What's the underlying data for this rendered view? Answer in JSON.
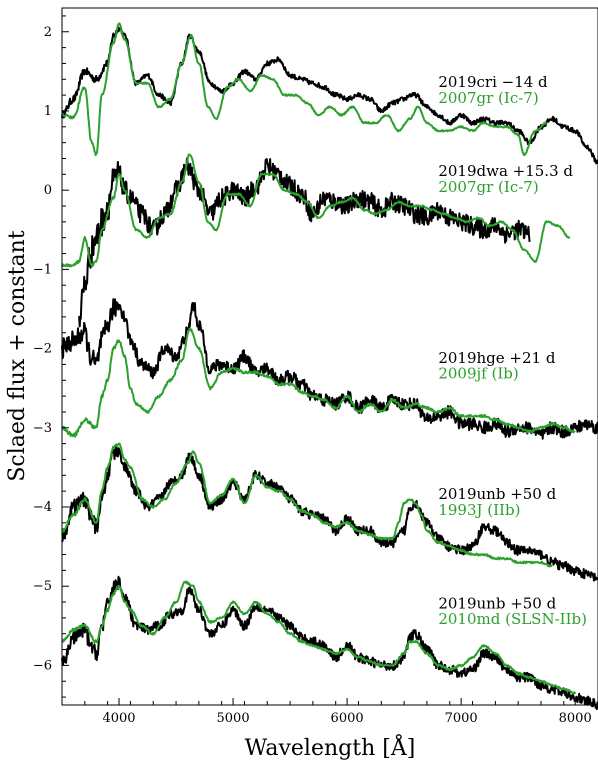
{
  "chart_data": {
    "type": "line",
    "title": "",
    "xlabel": "Wavelength [Å]",
    "ylabel": "Sclaed flux + constant",
    "xlim": [
      3500,
      8200
    ],
    "ylim": [
      -6.5,
      2.3
    ],
    "xticks": [
      4000,
      5000,
      6000,
      7000,
      8000
    ],
    "yticks": [
      -6,
      -5,
      -4,
      -3,
      -2,
      -1,
      0,
      1,
      2
    ],
    "grid": false,
    "legend": "none",
    "colors": {
      "observed": "#000000",
      "template": "#2ca02c"
    },
    "series": [
      {
        "name": "2019cri −14 d",
        "role": "observed",
        "noise": 0.03,
        "x": [
          3500,
          3600,
          3700,
          3800,
          3900,
          3950,
          4000,
          4050,
          4150,
          4250,
          4350,
          4450,
          4550,
          4620,
          4700,
          4800,
          4900,
          5000,
          5100,
          5200,
          5300,
          5400,
          5500,
          5600,
          5700,
          5800,
          5900,
          6000,
          6100,
          6200,
          6300,
          6400,
          6500,
          6550,
          6600,
          6700,
          6800,
          6900,
          7000,
          7100,
          7200,
          7300,
          7400,
          7500,
          7600,
          7700,
          7800,
          7900,
          8000,
          8100,
          8200
        ],
        "y": [
          0.95,
          1.15,
          1.5,
          1.4,
          1.6,
          1.95,
          2.05,
          1.95,
          1.35,
          1.45,
          1.2,
          1.1,
          1.6,
          1.95,
          1.75,
          1.35,
          1.25,
          1.35,
          1.5,
          1.4,
          1.6,
          1.65,
          1.45,
          1.4,
          1.35,
          1.3,
          1.2,
          1.15,
          1.2,
          1.15,
          1.0,
          1.1,
          1.15,
          1.2,
          1.2,
          1.05,
          0.95,
          0.85,
          0.95,
          0.85,
          0.9,
          0.85,
          0.85,
          0.75,
          0.6,
          0.8,
          0.9,
          0.8,
          0.75,
          0.55,
          0.35
        ]
      },
      {
        "name": "2007gr (Ic-7)",
        "role": "template",
        "noise": 0.01,
        "x": [
          3500,
          3600,
          3700,
          3760,
          3800,
          3850,
          3950,
          4000,
          4050,
          4150,
          4250,
          4350,
          4450,
          4550,
          4630,
          4700,
          4780,
          4850,
          4950,
          5050,
          5150,
          5250,
          5350,
          5450,
          5550,
          5650,
          5750,
          5850,
          5950,
          6050,
          6150,
          6250,
          6350,
          6450,
          6550,
          6620,
          6700,
          6800,
          6900,
          7000,
          7100,
          7200,
          7300,
          7400,
          7500,
          7550,
          7650,
          7750
        ],
        "y": [
          0.95,
          0.92,
          1.3,
          0.6,
          0.45,
          1.2,
          1.85,
          2.1,
          1.9,
          1.35,
          1.35,
          1.05,
          1.15,
          1.6,
          1.95,
          1.6,
          1.05,
          0.9,
          1.3,
          1.4,
          1.25,
          1.45,
          1.4,
          1.2,
          1.2,
          1.1,
          0.95,
          1.05,
          0.95,
          1.05,
          0.85,
          0.85,
          0.95,
          0.75,
          0.9,
          1.05,
          0.85,
          0.75,
          0.75,
          0.8,
          0.75,
          0.85,
          0.8,
          0.8,
          0.7,
          0.45,
          0.75,
          0.85
        ]
      },
      {
        "name": "2019dwa +15.3 d",
        "role": "observed",
        "noise": 0.12,
        "x": [
          3650,
          3700,
          3750,
          3800,
          3850,
          3900,
          3950,
          4000,
          4050,
          4100,
          4200,
          4300,
          4400,
          4500,
          4600,
          4700,
          4800,
          4900,
          5000,
          5100,
          5200,
          5300,
          5400,
          5500,
          5600,
          5700,
          5800,
          5900,
          6000,
          6100,
          6200,
          6300,
          6400,
          6500,
          6600,
          6700,
          6800,
          6900,
          7000,
          7100,
          7200,
          7300,
          7400,
          7500,
          7600
        ],
        "y": [
          -1.6,
          -1.2,
          -0.8,
          -0.6,
          -0.4,
          -0.2,
          0.1,
          0.2,
          0.0,
          -0.1,
          -0.3,
          -0.5,
          -0.3,
          0.0,
          0.3,
          0.0,
          -0.3,
          -0.1,
          0.0,
          -0.1,
          0.05,
          0.3,
          0.2,
          0.05,
          -0.05,
          -0.3,
          -0.1,
          -0.15,
          -0.2,
          -0.1,
          -0.15,
          -0.25,
          -0.15,
          -0.2,
          -0.3,
          -0.35,
          -0.25,
          -0.35,
          -0.4,
          -0.45,
          -0.5,
          -0.45,
          -0.55,
          -0.5,
          -0.55
        ]
      },
      {
        "name": "2007gr (Ic-7)",
        "role": "template",
        "noise": 0.01,
        "x": [
          3500,
          3600,
          3650,
          3700,
          3760,
          3800,
          3850,
          3950,
          4000,
          4050,
          4150,
          4250,
          4350,
          4450,
          4550,
          4620,
          4700,
          4780,
          4850,
          4950,
          5050,
          5150,
          5250,
          5350,
          5450,
          5550,
          5650,
          5750,
          5850,
          5950,
          6050,
          6150,
          6250,
          6350,
          6450,
          6550,
          6650,
          6750,
          6850,
          6950,
          7050,
          7150,
          7250,
          7350,
          7450,
          7550,
          7650,
          7750,
          7850,
          7950
        ],
        "y": [
          -0.95,
          -0.95,
          -0.9,
          -0.6,
          -0.95,
          -0.9,
          -0.5,
          -0.1,
          0.2,
          0.0,
          -0.5,
          -0.6,
          -0.35,
          -0.3,
          0.1,
          0.45,
          0.1,
          -0.4,
          -0.5,
          -0.05,
          -0.05,
          -0.2,
          0.2,
          0.2,
          0.0,
          -0.05,
          -0.15,
          -0.35,
          -0.2,
          -0.15,
          -0.1,
          -0.25,
          -0.3,
          -0.25,
          -0.15,
          -0.2,
          -0.2,
          -0.25,
          -0.3,
          -0.35,
          -0.4,
          -0.35,
          -0.45,
          -0.4,
          -0.5,
          -0.75,
          -0.9,
          -0.4,
          -0.45,
          -0.6
        ]
      },
      {
        "name": "2019hge +21 d",
        "role": "observed",
        "noise": 0.08,
        "x": [
          3500,
          3600,
          3700,
          3750,
          3800,
          3850,
          3900,
          3950,
          4000,
          4050,
          4100,
          4200,
          4300,
          4400,
          4500,
          4600,
          4650,
          4700,
          4800,
          4900,
          5000,
          5100,
          5200,
          5300,
          5400,
          5500,
          5600,
          5700,
          5800,
          5900,
          6000,
          6100,
          6200,
          6300,
          6400,
          6500,
          6600,
          6700,
          6800,
          6900,
          7000,
          7100,
          7200,
          7300,
          7400,
          7500,
          7600,
          7700,
          7800,
          7900,
          8000,
          8100,
          8200
        ],
        "y": [
          -2.0,
          -1.9,
          -1.8,
          -2.1,
          -2.2,
          -1.9,
          -1.7,
          -1.5,
          -1.45,
          -1.6,
          -1.9,
          -2.2,
          -2.3,
          -2.0,
          -2.1,
          -1.8,
          -1.45,
          -1.7,
          -2.25,
          -2.2,
          -2.25,
          -2.1,
          -2.3,
          -2.25,
          -2.4,
          -2.35,
          -2.45,
          -2.6,
          -2.65,
          -2.7,
          -2.6,
          -2.75,
          -2.65,
          -2.75,
          -2.65,
          -2.7,
          -2.7,
          -2.9,
          -2.85,
          -2.8,
          -2.95,
          -2.95,
          -3.0,
          -2.95,
          -3.05,
          -3.0,
          -3.0,
          -3.1,
          -3.0,
          -3.05,
          -3.0,
          -2.95,
          -3.0
        ]
      },
      {
        "name": "2009jf (Ib)",
        "role": "template",
        "noise": 0.015,
        "x": [
          3500,
          3600,
          3700,
          3800,
          3850,
          3900,
          3950,
          4000,
          4050,
          4100,
          4150,
          4250,
          4350,
          4450,
          4550,
          4620,
          4700,
          4800,
          4900,
          5000,
          5100,
          5200,
          5300,
          5400,
          5500,
          5600,
          5700,
          5800,
          5900,
          6000,
          6100,
          6200,
          6300,
          6400,
          6500,
          6600,
          6700,
          6800,
          6900,
          7000,
          7100,
          7200,
          7300,
          7400,
          7500,
          7600,
          7700,
          7800,
          7900,
          8000
        ],
        "y": [
          -3.0,
          -3.1,
          -2.9,
          -3.0,
          -2.6,
          -2.4,
          -2.0,
          -1.9,
          -2.1,
          -2.5,
          -2.7,
          -2.8,
          -2.6,
          -2.4,
          -2.15,
          -1.75,
          -2.0,
          -2.5,
          -2.3,
          -2.25,
          -2.3,
          -2.3,
          -2.35,
          -2.45,
          -2.45,
          -2.55,
          -2.6,
          -2.65,
          -2.75,
          -2.6,
          -2.8,
          -2.7,
          -2.8,
          -2.65,
          -2.75,
          -2.7,
          -2.75,
          -2.8,
          -2.75,
          -2.85,
          -2.85,
          -2.85,
          -2.9,
          -2.95,
          -3.0,
          -3.05,
          -3.0,
          -2.95,
          -3.0,
          -3.05
        ]
      },
      {
        "name": "2019unb +50 d",
        "role": "observed",
        "noise": 0.06,
        "x": [
          3500,
          3600,
          3700,
          3750,
          3800,
          3850,
          3900,
          3950,
          4000,
          4050,
          4150,
          4250,
          4350,
          4450,
          4550,
          4620,
          4700,
          4800,
          4900,
          5000,
          5100,
          5200,
          5300,
          5400,
          5500,
          5600,
          5700,
          5800,
          5900,
          6000,
          6100,
          6200,
          6300,
          6400,
          6500,
          6550,
          6600,
          6700,
          6800,
          6900,
          7000,
          7100,
          7200,
          7300,
          7400,
          7500,
          7600,
          7700,
          7800,
          7900,
          8000,
          8100,
          8200
        ],
        "y": [
          -4.4,
          -4.0,
          -3.9,
          -4.1,
          -4.25,
          -3.9,
          -3.6,
          -3.3,
          -3.3,
          -3.5,
          -3.8,
          -4.0,
          -3.9,
          -3.7,
          -3.6,
          -3.35,
          -3.6,
          -4.0,
          -3.9,
          -3.7,
          -3.9,
          -3.6,
          -3.7,
          -3.75,
          -3.9,
          -4.05,
          -4.1,
          -4.15,
          -4.3,
          -4.15,
          -4.3,
          -4.3,
          -4.45,
          -4.45,
          -4.3,
          -4.0,
          -3.95,
          -4.2,
          -4.4,
          -4.5,
          -4.55,
          -4.5,
          -4.25,
          -4.3,
          -4.45,
          -4.55,
          -4.55,
          -4.6,
          -4.7,
          -4.75,
          -4.8,
          -4.85,
          -4.9
        ]
      },
      {
        "name": "1993J (IIb)",
        "role": "template",
        "noise": 0.012,
        "x": [
          3500,
          3600,
          3700,
          3800,
          3850,
          3900,
          3950,
          4000,
          4050,
          4100,
          4200,
          4300,
          4400,
          4500,
          4600,
          4650,
          4700,
          4800,
          4900,
          5000,
          5100,
          5200,
          5300,
          5400,
          5500,
          5600,
          5700,
          5800,
          5900,
          6000,
          6100,
          6200,
          6300,
          6400,
          6450,
          6500,
          6550,
          6600,
          6650,
          6700,
          6800,
          6900,
          7000,
          7100,
          7200,
          7300,
          7400,
          7500,
          7600,
          7700,
          7800
        ],
        "y": [
          -4.3,
          -4.1,
          -3.9,
          -4.2,
          -3.8,
          -3.5,
          -3.25,
          -3.2,
          -3.4,
          -3.5,
          -3.9,
          -4.0,
          -3.9,
          -3.7,
          -3.45,
          -3.3,
          -3.45,
          -3.95,
          -3.85,
          -3.65,
          -3.95,
          -3.6,
          -3.75,
          -3.8,
          -3.9,
          -4.05,
          -4.1,
          -4.2,
          -4.25,
          -4.2,
          -4.3,
          -4.35,
          -4.4,
          -4.4,
          -4.2,
          -3.95,
          -3.9,
          -3.95,
          -4.1,
          -4.3,
          -4.45,
          -4.5,
          -4.55,
          -4.6,
          -4.6,
          -4.65,
          -4.65,
          -4.7,
          -4.7,
          -4.7,
          -4.75
        ]
      },
      {
        "name": "2019unb +50 d",
        "role": "observed",
        "noise": 0.06,
        "x": [
          3500,
          3600,
          3700,
          3750,
          3800,
          3850,
          3900,
          3950,
          4000,
          4050,
          4150,
          4250,
          4350,
          4450,
          4550,
          4620,
          4700,
          4800,
          4900,
          5000,
          5100,
          5200,
          5300,
          5400,
          5500,
          5600,
          5700,
          5800,
          5900,
          6000,
          6100,
          6200,
          6300,
          6400,
          6500,
          6550,
          6600,
          6700,
          6800,
          6900,
          7000,
          7100,
          7200,
          7300,
          7400,
          7500,
          7600,
          7700,
          7800,
          7900,
          8000,
          8100,
          8200
        ],
        "y": [
          -6.0,
          -5.65,
          -5.55,
          -5.75,
          -5.85,
          -5.5,
          -5.25,
          -5.0,
          -4.95,
          -5.15,
          -5.5,
          -5.55,
          -5.5,
          -5.35,
          -5.3,
          -5.05,
          -5.3,
          -5.6,
          -5.5,
          -5.3,
          -5.5,
          -5.25,
          -5.3,
          -5.4,
          -5.5,
          -5.65,
          -5.7,
          -5.75,
          -5.9,
          -5.75,
          -5.9,
          -5.95,
          -6.0,
          -6.0,
          -5.9,
          -5.65,
          -5.6,
          -5.8,
          -6.0,
          -6.05,
          -6.1,
          -6.05,
          -5.85,
          -5.9,
          -6.05,
          -6.15,
          -6.15,
          -6.25,
          -6.3,
          -6.35,
          -6.4,
          -6.45,
          -6.5
        ]
      },
      {
        "name": "2010md (SLSN-IIb)",
        "role": "template",
        "noise": 0.012,
        "x": [
          3500,
          3600,
          3700,
          3800,
          3850,
          3900,
          3950,
          4000,
          4050,
          4100,
          4200,
          4300,
          4400,
          4500,
          4580,
          4650,
          4700,
          4800,
          4900,
          5000,
          5100,
          5200,
          5300,
          5400,
          5500,
          5600,
          5700,
          5800,
          5900,
          6000,
          6100,
          6200,
          6300,
          6400,
          6500,
          6550,
          6600,
          6700,
          6800,
          6900,
          7000,
          7100,
          7200,
          7300,
          7400,
          7500,
          7600,
          7700,
          7800,
          7900,
          8000
        ],
        "y": [
          -5.7,
          -5.55,
          -5.5,
          -5.7,
          -5.5,
          -5.3,
          -5.1,
          -5.0,
          -5.2,
          -5.3,
          -5.5,
          -5.6,
          -5.4,
          -5.2,
          -4.95,
          -5.0,
          -5.2,
          -5.45,
          -5.4,
          -5.2,
          -5.35,
          -5.2,
          -5.35,
          -5.45,
          -5.6,
          -5.7,
          -5.75,
          -5.8,
          -5.85,
          -5.8,
          -5.9,
          -5.95,
          -6.0,
          -6.0,
          -5.85,
          -5.7,
          -5.7,
          -5.85,
          -6.0,
          -6.05,
          -6.0,
          -5.9,
          -5.75,
          -5.85,
          -6.0,
          -6.1,
          -6.15,
          -6.2,
          -6.25,
          -6.3,
          -6.35
        ]
      }
    ],
    "annotations": [
      {
        "label": "2019cri −14 d",
        "role": "observed",
        "x": 6800,
        "y": 1.3
      },
      {
        "label": "2007gr (Ic-7)",
        "role": "template",
        "x": 6800,
        "y": 1.1
      },
      {
        "label": "2019dwa +15.3 d",
        "role": "observed",
        "x": 6800,
        "y": 0.18
      },
      {
        "label": "2007gr (Ic-7)",
        "role": "template",
        "x": 6800,
        "y": -0.02
      },
      {
        "label": "2019hge +21 d",
        "role": "observed",
        "x": 6800,
        "y": -2.18
      },
      {
        "label": "2009jf (Ib)",
        "role": "template",
        "x": 6800,
        "y": -2.38
      },
      {
        "label": "2019unb +50 d",
        "role": "observed",
        "x": 6800,
        "y": -3.9
      },
      {
        "label": "1993J (IIb)",
        "role": "template",
        "x": 6800,
        "y": -4.1
      },
      {
        "label": "2019unb +50 d",
        "role": "observed",
        "x": 6800,
        "y": -5.28
      },
      {
        "label": "2010md (SLSN-IIb)",
        "role": "template",
        "x": 6800,
        "y": -5.48
      }
    ]
  }
}
